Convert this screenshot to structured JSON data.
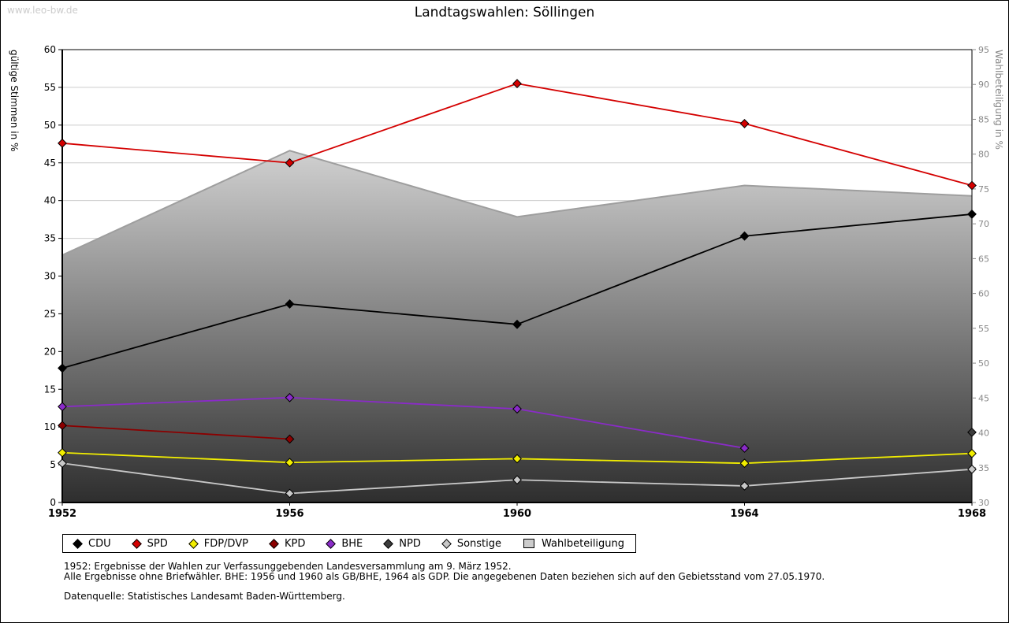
{
  "page": {
    "title": "Landtagswahlen: Söllingen",
    "watermark": "www.leo-bw.de",
    "footnotes": [
      "1952: Ergebnisse der Wahlen zur Verfassunggebenden Landesversammlung am 9. März 1952.",
      "Alle Ergebnisse ohne Briefwähler. BHE: 1956 und 1960 als GB/BHE, 1964 als GDP. Die angegebenen Daten beziehen sich auf den Gebietsstand vom 27.05.1970.",
      "Datenquelle: Statistisches Landesamt Baden-Württemberg."
    ]
  },
  "chart_data": {
    "type": "line",
    "title": "Landtagswahlen: Söllingen",
    "x": [
      1952,
      1956,
      1960,
      1964,
      1968
    ],
    "left_axis": {
      "label": "gültige Stimmen in %",
      "min": 0,
      "max": 60,
      "tick_step": 5
    },
    "right_axis": {
      "label": "Wahlbeteiligung in %",
      "min": 30,
      "max": 95,
      "tick_step": 5
    },
    "grid": true,
    "legend_position": "bottom",
    "marker": "diamond",
    "colors": {
      "grid": "#cccccc",
      "area_outline": "#9e9e9e",
      "right_axis_text": "#878787",
      "axis": "#000000"
    },
    "series": [
      {
        "name": "CDU",
        "kind": "line",
        "axis": "left",
        "color": "#000000",
        "values": [
          17.8,
          26.3,
          23.6,
          35.3,
          38.2
        ]
      },
      {
        "name": "SPD",
        "kind": "line",
        "axis": "left",
        "color": "#d40000",
        "values": [
          47.6,
          45.0,
          55.5,
          50.2,
          42.0
        ]
      },
      {
        "name": "FDP/DVP",
        "kind": "line",
        "axis": "left",
        "color": "#f2ee00",
        "values": [
          6.6,
          5.3,
          5.8,
          5.2,
          6.5
        ]
      },
      {
        "name": "KPD",
        "kind": "line",
        "axis": "left",
        "color": "#8b0000",
        "values": [
          10.2,
          8.4,
          null,
          null,
          null
        ]
      },
      {
        "name": "BHE",
        "kind": "line",
        "axis": "left",
        "color": "#8a2bc8",
        "values": [
          12.7,
          13.9,
          12.4,
          7.2,
          null
        ]
      },
      {
        "name": "NPD",
        "kind": "line",
        "axis": "left",
        "color": "#3c3c3c",
        "values": [
          null,
          null,
          null,
          null,
          9.3
        ]
      },
      {
        "name": "Sonstige",
        "kind": "line",
        "axis": "left",
        "color": "#c8c8c8",
        "values": [
          5.2,
          1.2,
          3.0,
          2.2,
          4.4
        ]
      },
      {
        "name": "Wahlbeteiligung",
        "kind": "area",
        "axis": "right",
        "color": "#cccccc",
        "values": [
          65.5,
          80.5,
          71.0,
          75.5,
          74.0
        ]
      }
    ]
  }
}
